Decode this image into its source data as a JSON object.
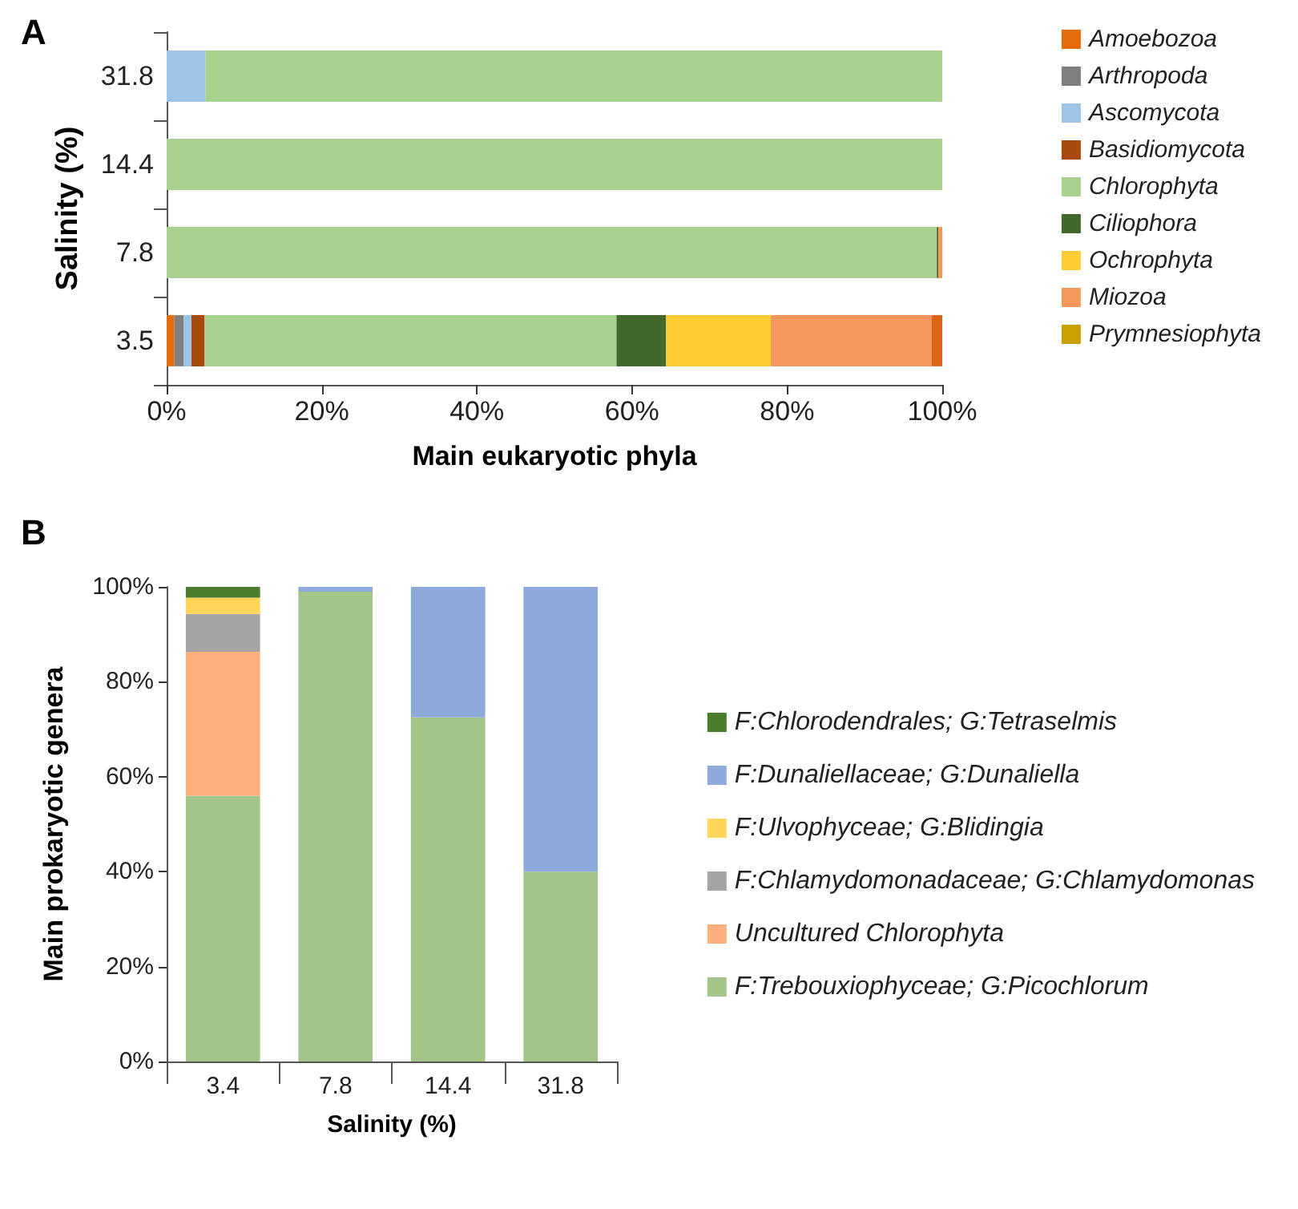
{
  "chart_data": [
    {
      "type": "bar",
      "title": "A",
      "orientation": "horizontal",
      "stacked": true,
      "categories": [
        "31.8",
        "14.4",
        "7.8",
        "3.5"
      ],
      "xlabel": "Main eukaryotic phyla",
      "ylabel": "Salinity (%)",
      "xlim": [
        0,
        100
      ],
      "xticks": [
        {
          "value": 0,
          "label": "0%"
        },
        {
          "value": 20,
          "label": "20%"
        },
        {
          "value": 40,
          "label": "40%"
        },
        {
          "value": 60,
          "label": "60%"
        },
        {
          "value": 80,
          "label": "80%"
        },
        {
          "value": 100,
          "label": "100%"
        }
      ],
      "grid": false,
      "legend": "right",
      "series": [
        {
          "name": "Amoebozoa",
          "color": "#e46c0a",
          "values": [
            0,
            0,
            0,
            1.0
          ]
        },
        {
          "name": "Arthropoda",
          "color": "#7f7f7f",
          "values": [
            0,
            0,
            0,
            1.2
          ]
        },
        {
          "name": "Ascomycota",
          "color": "#9dc3e6",
          "values": [
            5.0,
            0,
            0,
            1.0
          ]
        },
        {
          "name": "Basidiomycota",
          "color": "#a9480f",
          "values": [
            0,
            0,
            0,
            1.7
          ]
        },
        {
          "name": "Chlorophyta",
          "color": "#a9d18e",
          "values": [
            95.0,
            100,
            99.3,
            53.1
          ]
        },
        {
          "name": "Ciliophora",
          "color": "#43682b",
          "values": [
            0,
            0,
            0.2,
            6.4
          ]
        },
        {
          "name": "Ochrophyta",
          "color": "#ffcd33",
          "values": [
            0,
            0,
            0,
            13.5
          ]
        },
        {
          "name": "Miozoa",
          "color": "#f4975a",
          "values": [
            0,
            0,
            0.5,
            20.7
          ]
        },
        {
          "name": "Prymnesiophyta",
          "color": "#c9a000",
          "values": [
            0,
            0,
            0,
            0
          ]
        },
        {
          "color": "#df6317",
          "values": [
            0,
            0,
            0,
            1.4
          ]
        }
      ]
    },
    {
      "type": "bar",
      "title": "B",
      "stacked": true,
      "categories": [
        "3.4",
        "7.8",
        "14.4",
        "31.8"
      ],
      "xlabel": "Salinity (%)",
      "ylabel": "Main prokaryotic genera",
      "ylim": [
        0,
        100
      ],
      "yticks": [
        {
          "value": 0,
          "label": "0%"
        },
        {
          "value": 20,
          "label": "20%"
        },
        {
          "value": 40,
          "label": "40%"
        },
        {
          "value": 60,
          "label": "60%"
        },
        {
          "value": 80,
          "label": "80%"
        },
        {
          "value": 100,
          "label": "100%"
        }
      ],
      "grid": false,
      "legend": "right",
      "series": [
        {
          "name": "F:Trebouxiophyceae; G:Picochlorum",
          "color": "#a3c58a",
          "values": [
            56,
            99,
            72.5,
            40
          ]
        },
        {
          "name": "Uncultured Chlorophyta",
          "color": "#ffb07f",
          "values": [
            30.3,
            0,
            0,
            0
          ]
        },
        {
          "name": "F:Chlamydomonadaceae; G:Chlamydomonas",
          "color": "#a5a5a5",
          "values": [
            8,
            0,
            0,
            0
          ]
        },
        {
          "name": "F:Ulvophyceae; G:Blidingia",
          "color": "#ffd55a",
          "values": [
            3.4,
            0,
            0,
            0
          ]
        },
        {
          "name": "F:Dunaliellaceae; G:Dunaliella",
          "color": "#8eaadb",
          "values": [
            0,
            1,
            27.5,
            60
          ]
        },
        {
          "name": "F:Chlorodendrales; G:Tetraselmis",
          "color": "#4a7d2e",
          "values": [
            2.3,
            0,
            0,
            0
          ]
        }
      ]
    }
  ]
}
